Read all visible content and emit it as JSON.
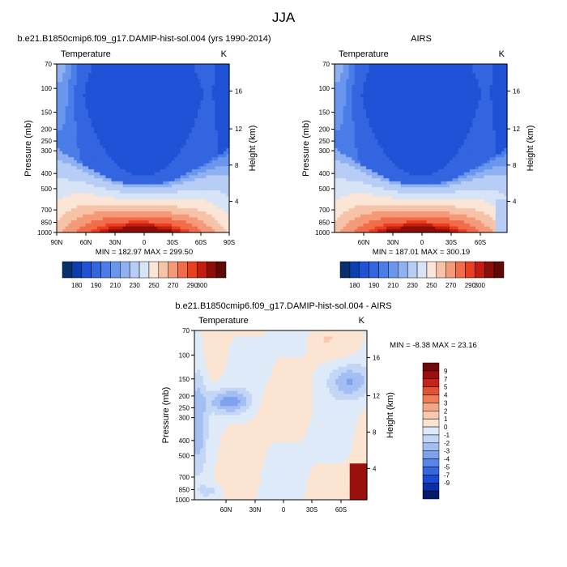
{
  "figure": {
    "title": "JJA"
  },
  "colors": {
    "abs_scale": [
      "#08306b",
      "#0a3fb0",
      "#1f52d6",
      "#3465e0",
      "#4a7de8",
      "#6a96ee",
      "#8fb1f2",
      "#b7cdf5",
      "#d6e4f6",
      "#fbe5d6",
      "#f7c3a8",
      "#f49a78",
      "#f06c4a",
      "#e8401f",
      "#c41c0e",
      "#8b0f07",
      "#5e0904"
    ],
    "diff_scale": [
      "#08186b",
      "#0b2fa8",
      "#1c4bd3",
      "#3466e0",
      "#5a86e9",
      "#7ea2ee",
      "#a3bef2",
      "#c3d6f5",
      "#dfeaf8",
      "#fbe4d2",
      "#f8c9ae",
      "#f4a784",
      "#ef7d58",
      "#e35232",
      "#c6231a",
      "#99100d",
      "#700808"
    ]
  },
  "chart_data": [
    {
      "type": "heatmap",
      "title": "b.e21.B1850cmip6.f09_g17.DAMIP-hist-sol.004 (yrs 1990-2014)",
      "subtitle_left": "Temperature",
      "subtitle_right": "K",
      "ylabel": "Pressure (mb)",
      "y2label": "Height (km)",
      "x_ticks": [
        "90N",
        "60N",
        "30N",
        "0",
        "30S",
        "60S",
        "90S"
      ],
      "y_ticks": [
        "70",
        "100",
        "150",
        "200",
        "250",
        "300",
        "400",
        "500",
        "700",
        "850",
        "1000"
      ],
      "y2_ticks": [
        "4",
        "8",
        "12",
        "16"
      ],
      "stats": "MIN = 182.97   MAX = 299.50",
      "colorbar_labels": [
        "180",
        "190",
        "210",
        "230",
        "250",
        "270",
        "290",
        "300"
      ]
    },
    {
      "type": "heatmap",
      "title": "AIRS",
      "subtitle_left": "Temperature",
      "subtitle_right": "K",
      "ylabel": "Pressure (mb)",
      "y2label": "Height (km)",
      "x_ticks": [
        "60N",
        "30N",
        "0",
        "30S",
        "60S"
      ],
      "y_ticks": [
        "70",
        "100",
        "150",
        "200",
        "250",
        "300",
        "400",
        "500",
        "700",
        "850",
        "1000"
      ],
      "y2_ticks": [
        "4",
        "8",
        "12",
        "16"
      ],
      "stats": "MIN = 187.01   MAX = 300.19",
      "colorbar_labels": [
        "180",
        "190",
        "210",
        "230",
        "250",
        "270",
        "290",
        "300"
      ]
    },
    {
      "type": "heatmap",
      "title": "b.e21.B1850cmip6.f09_g17.DAMIP-hist-sol.004 - AIRS",
      "subtitle_left": "Temperature",
      "subtitle_right": "K",
      "ylabel": "Pressure (mb)",
      "y2label": "Height (km)",
      "x_ticks": [
        "60N",
        "30N",
        "0",
        "30S",
        "60S"
      ],
      "y_ticks": [
        "70",
        "100",
        "150",
        "200",
        "250",
        "300",
        "400",
        "500",
        "700",
        "850",
        "1000"
      ],
      "y2_ticks": [
        "4",
        "8",
        "12",
        "16"
      ],
      "stats": "MIN =  -8.38   MAX =  23.16",
      "colorbar_labels": [
        "9",
        "7",
        "5",
        "4",
        "3",
        "2",
        "1",
        "0",
        "-1",
        "-2",
        "-3",
        "-4",
        "-5",
        "-7",
        "-9"
      ]
    }
  ]
}
